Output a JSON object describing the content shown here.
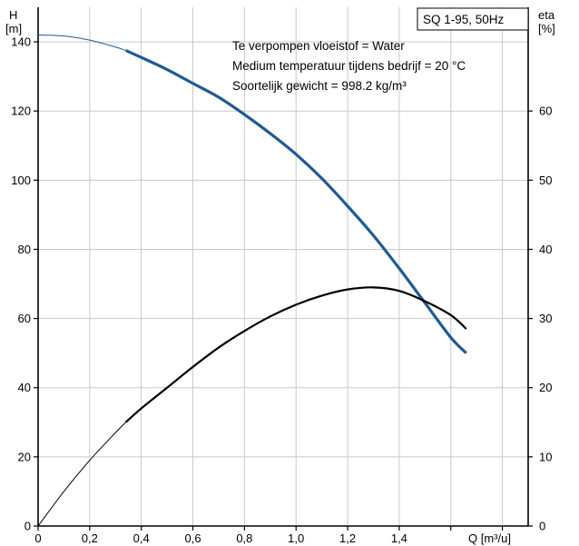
{
  "chart_data": {
    "type": "line",
    "title": "SQ 1-95, 50Hz",
    "notes": [
      "Te verpompen vloeistof = Water",
      "Medium temperatuur tijdens bedrijf = 20 °C",
      "Soortelijk gewicht = 998.2 kg/m³"
    ],
    "xlabel": "Q [m³/u]",
    "ylabel": [
      "H",
      "[m]"
    ],
    "y2label": [
      "eta",
      "[%]"
    ],
    "xlim": [
      0,
      1.9
    ],
    "ylim": [
      0,
      150
    ],
    "y2lim": [
      0,
      75
    ],
    "x_ticks": [
      "0",
      "0,2",
      "0,4",
      "0,6",
      "0,8",
      "1,0",
      "1,2",
      "1,4"
    ],
    "y_ticks": [
      "0",
      "20",
      "40",
      "60",
      "80",
      "100",
      "120",
      "140"
    ],
    "y2_ticks": [
      "0",
      "10",
      "20",
      "30",
      "40",
      "50",
      "60"
    ],
    "grid": true,
    "series": [
      {
        "axis": "left",
        "color": "#1f5a94",
        "x": [
          0,
          0.1,
          0.2,
          0.3,
          0.34,
          0.4,
          0.5,
          0.6,
          0.7,
          0.8,
          0.9,
          1.0,
          1.1,
          1.2,
          1.3,
          1.4,
          1.5,
          1.6,
          1.66
        ],
        "values": [
          142,
          141.7,
          140.5,
          138.5,
          137.5,
          135.5,
          132,
          128,
          124,
          119,
          113.5,
          107.5,
          100.5,
          92.5,
          84,
          74.5,
          64.5,
          54.5,
          50
        ],
        "highlight_from_x": 0.34
      },
      {
        "axis": "right",
        "color": "#000000",
        "x": [
          0,
          0.1,
          0.2,
          0.3,
          0.34,
          0.4,
          0.5,
          0.6,
          0.7,
          0.8,
          0.9,
          1.0,
          1.1,
          1.2,
          1.3,
          1.4,
          1.5,
          1.6,
          1.66
        ],
        "values": [
          0,
          5,
          9.5,
          13.5,
          15,
          17,
          20,
          23,
          25.8,
          28.2,
          30.3,
          32,
          33.3,
          34.2,
          34.5,
          34,
          32.5,
          30.5,
          28.5
        ],
        "highlight_from_x": 0.34
      }
    ]
  }
}
